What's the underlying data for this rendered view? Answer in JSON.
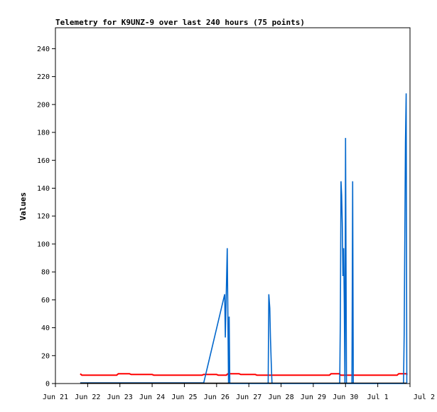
{
  "chart_data": {
    "type": "line",
    "title": "Telemetry for K9UNZ-9 over last 240 hours (75 points)",
    "xlabel": "",
    "ylabel": "Values",
    "ylim": [
      0,
      255
    ],
    "yticks": [
      0,
      20,
      40,
      60,
      80,
      100,
      120,
      140,
      160,
      180,
      200,
      220,
      240
    ],
    "xlim": [
      0,
      11
    ],
    "xticks": [
      {
        "x": 0,
        "label": "Jun 21"
      },
      {
        "x": 1,
        "label": "Jun 22"
      },
      {
        "x": 2,
        "label": "Jun 23"
      },
      {
        "x": 3,
        "label": "Jun 24"
      },
      {
        "x": 4,
        "label": "Jun 25"
      },
      {
        "x": 5,
        "label": "Jun 26"
      },
      {
        "x": 6,
        "label": "Jun 27"
      },
      {
        "x": 7,
        "label": "Jun 28"
      },
      {
        "x": 8,
        "label": "Jun 29"
      },
      {
        "x": 9,
        "label": "Jun 30"
      },
      {
        "x": 10,
        "label": "Jul 1"
      },
      {
        "x": 11,
        "label": "Jul 2"
      }
    ],
    "grid": false,
    "series": [
      {
        "color": "#ff0000",
        "points": [
          [
            0.77,
            7
          ],
          [
            0.82,
            6
          ],
          [
            1.9,
            6
          ],
          [
            1.95,
            7
          ],
          [
            2.3,
            7
          ],
          [
            2.35,
            6.5
          ],
          [
            3.0,
            6.5
          ],
          [
            3.05,
            6
          ],
          [
            4.55,
            6
          ],
          [
            4.6,
            6.5
          ],
          [
            5.0,
            6.5
          ],
          [
            5.05,
            6
          ],
          [
            5.3,
            6
          ],
          [
            5.35,
            7
          ],
          [
            5.7,
            7
          ],
          [
            5.75,
            6.5
          ],
          [
            6.2,
            6.5
          ],
          [
            6.25,
            6
          ],
          [
            8.5,
            6
          ],
          [
            8.55,
            7
          ],
          [
            8.8,
            7
          ],
          [
            8.85,
            6
          ],
          [
            10.6,
            6
          ],
          [
            10.65,
            7
          ],
          [
            10.9,
            7
          ],
          [
            10.9,
            6
          ]
        ]
      },
      {
        "color": "#0066cc",
        "points": [
          [
            0.77,
            0.5
          ],
          [
            4.6,
            0.5
          ],
          [
            5.25,
            64
          ],
          [
            5.27,
            33
          ],
          [
            5.33,
            97
          ],
          [
            5.37,
            0
          ],
          [
            5.39,
            48
          ],
          [
            5.41,
            0
          ],
          [
            6.6,
            0
          ],
          [
            6.62,
            64
          ],
          [
            6.65,
            54
          ],
          [
            6.67,
            33
          ],
          [
            6.7,
            12
          ],
          [
            6.72,
            0
          ],
          [
            8.82,
            0
          ],
          [
            8.84,
            48
          ],
          [
            8.86,
            145
          ],
          [
            8.88,
            135
          ],
          [
            8.9,
            115
          ],
          [
            8.92,
            77
          ],
          [
            8.94,
            97
          ],
          [
            8.96,
            58
          ],
          [
            8.98,
            0
          ],
          [
            9.0,
            176
          ],
          [
            9.03,
            0
          ],
          [
            9.2,
            0
          ],
          [
            9.22,
            145
          ],
          [
            9.24,
            0
          ],
          [
            10.8,
            0
          ],
          [
            10.82,
            35
          ],
          [
            10.84,
            104
          ],
          [
            10.86,
            173
          ],
          [
            10.88,
            208
          ],
          [
            10.9,
            0
          ]
        ]
      },
      {
        "color": "#000000",
        "points": [
          [
            0.77,
            0.3
          ],
          [
            10.9,
            0.3
          ]
        ]
      }
    ]
  }
}
